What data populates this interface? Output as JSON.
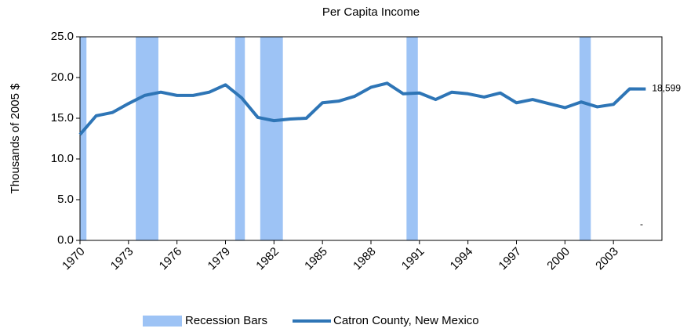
{
  "chart_data": {
    "type": "line",
    "title": "Per Capita Income",
    "y_label": "Thousands of 2005 $",
    "x": [
      1970,
      1971,
      1972,
      1973,
      1974,
      1975,
      1976,
      1977,
      1978,
      1979,
      1980,
      1981,
      1982,
      1983,
      1984,
      1985,
      1986,
      1987,
      1988,
      1989,
      1990,
      1991,
      1992,
      1993,
      1994,
      1995,
      1996,
      1997,
      1998,
      1999,
      2000,
      2001,
      2002,
      2003,
      2004,
      2005
    ],
    "series": [
      {
        "name": "Catron County, New Mexico",
        "color": "#2e75b6",
        "values": [
          13.0,
          15.3,
          15.7,
          16.8,
          17.8,
          18.2,
          17.8,
          17.8,
          18.2,
          19.1,
          17.5,
          15.1,
          14.7,
          14.9,
          15.0,
          16.9,
          17.1,
          17.7,
          18.8,
          19.3,
          18.0,
          18.1,
          17.3,
          18.2,
          18.0,
          17.6,
          18.1,
          16.9,
          17.3,
          16.8,
          16.3,
          17.0,
          16.4,
          16.7,
          18.6,
          18.599
        ],
        "value_labels": [
          null,
          null,
          null,
          null,
          null,
          null,
          null,
          null,
          null,
          null,
          null,
          null,
          null,
          null,
          null,
          null,
          null,
          null,
          null,
          null,
          null,
          null,
          null,
          null,
          null,
          null,
          null,
          null,
          null,
          null,
          null,
          null,
          null,
          null,
          null,
          "18,599"
        ]
      }
    ],
    "recessions": {
      "name": "Recession Bars",
      "color": "#9dc3f5",
      "spans": [
        [
          1970,
          1970.4
        ],
        [
          1973.45,
          1974.85
        ],
        [
          1979.6,
          1980.2
        ],
        [
          1981.15,
          1982.55
        ],
        [
          1990.2,
          1990.9
        ],
        [
          2000.9,
          2001.6
        ]
      ]
    },
    "annotation": "-",
    "xlim": [
      1970,
      2006
    ],
    "xticks": [
      1970,
      1973,
      1976,
      1979,
      1982,
      1985,
      1988,
      1991,
      1994,
      1997,
      2000,
      2003
    ],
    "ylim": [
      0,
      25
    ],
    "yticks": [
      {
        "value": 0,
        "label": "0.0"
      },
      {
        "value": 5,
        "label": "5.0"
      },
      {
        "value": 10,
        "label": "10.0"
      },
      {
        "value": 15,
        "label": "15.0"
      },
      {
        "value": 20,
        "label": "20.0"
      },
      {
        "value": 25,
        "label": "25.0"
      }
    ]
  }
}
